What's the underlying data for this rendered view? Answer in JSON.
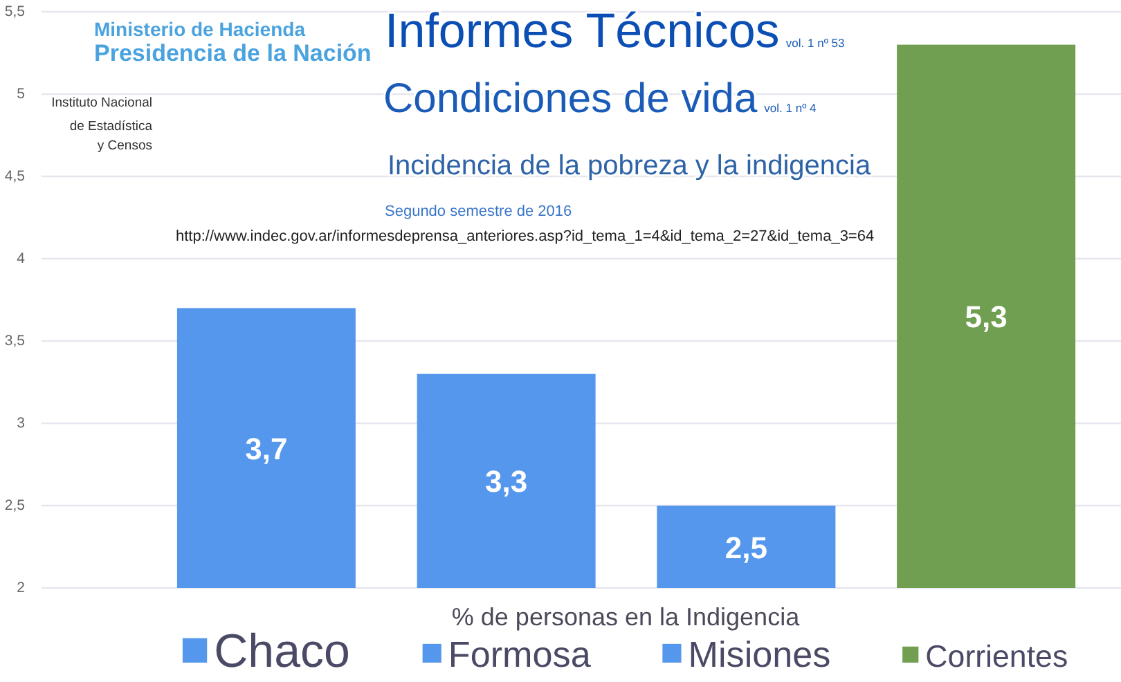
{
  "chart_data": {
    "type": "bar",
    "title": "Informes Técnicos",
    "subtitle": "Condiciones de vida",
    "xlabel": "% de personas en la Indigencia",
    "annotations": [
      "vol. 1 nº 53",
      "vol. 1 nº 4",
      "Incidencia de la pobreza y la indigencia",
      "Segundo semestre de 2016",
      "http://www.indec.gov.ar/informesdeprensa_anteriores.asp?id_tema_1=4&id_tema_2=27&id_tema_3=64",
      "Ministerio de Hacienda",
      "Presidencia de la Nación",
      "Instituto Nacional",
      "de Estadística",
      "y Censos"
    ],
    "categories": [
      null
    ],
    "series": [
      {
        "name": "Chaco",
        "color": "#5597ec",
        "values": [
          3.7
        ],
        "value_labels": [
          "3,7"
        ]
      },
      {
        "name": "Formosa",
        "color": "#5597ec",
        "values": [
          3.3
        ],
        "value_labels": [
          "3,3"
        ]
      },
      {
        "name": "Misiones",
        "color": "#5597ec",
        "values": [
          2.5
        ],
        "value_labels": [
          "2,5"
        ]
      },
      {
        "name": "Corrientes",
        "color": "#709f52",
        "values": [
          5.3
        ],
        "value_labels": [
          "5,3"
        ]
      }
    ],
    "ylim": [
      2,
      5.5
    ],
    "yticks": [
      2,
      {
        "value": 2.5,
        "label": "2,5"
      },
      3,
      {
        "value": 3.5,
        "label": "3,5"
      },
      4,
      {
        "value": 4.5,
        "label": "4,5"
      },
      5,
      {
        "value": 5.5,
        "label": "5,5"
      }
    ],
    "grid": "y",
    "legend": "bottom"
  }
}
